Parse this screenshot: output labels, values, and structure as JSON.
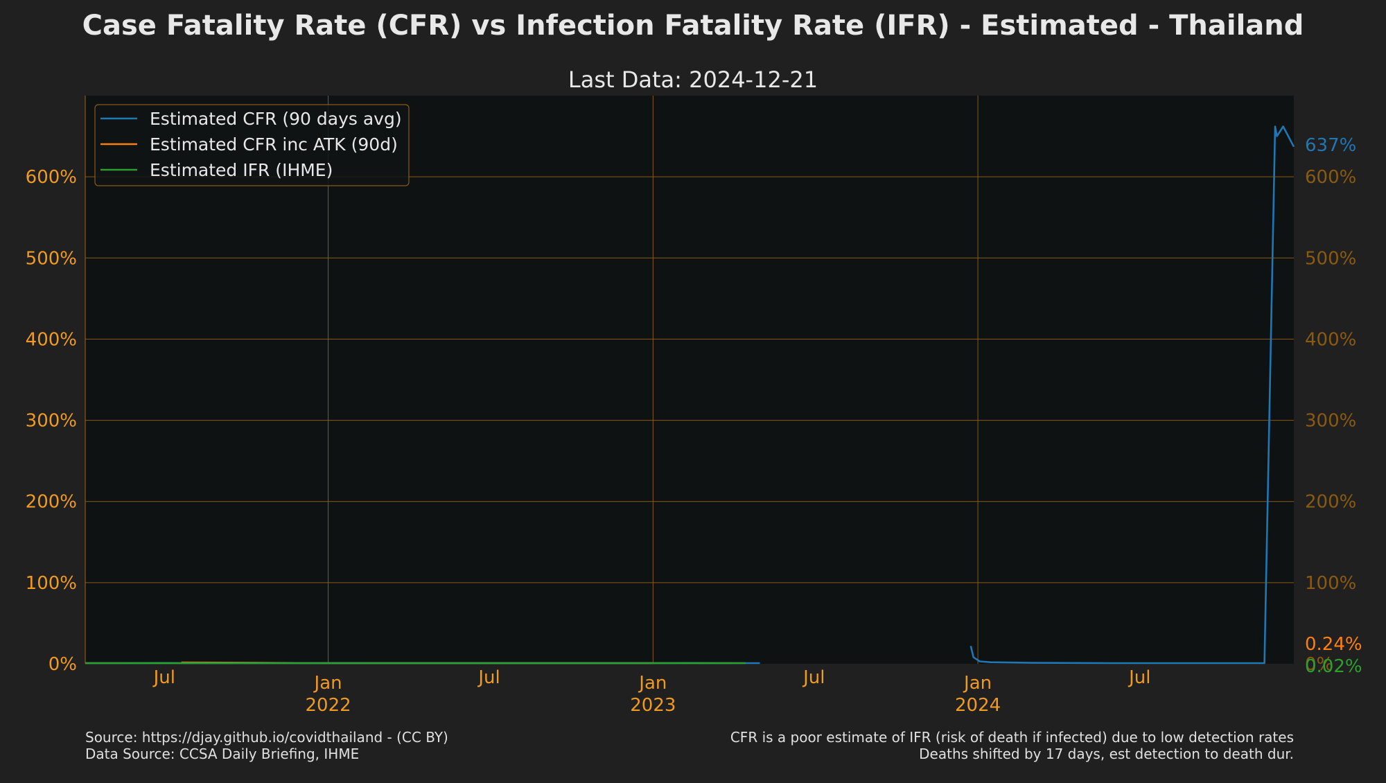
{
  "chart_data": {
    "type": "line",
    "title": "Case Fatality Rate (CFR) vs Infection Fatality Rate (IFR) - Estimated - Thailand",
    "subtitle": "Last Data: 2024-12-21",
    "xlabel": "",
    "ylabel": "",
    "x_range": [
      "2021-04-03",
      "2024-12-21"
    ],
    "ylim": [
      0,
      700
    ],
    "y_ticks": [
      0,
      100,
      200,
      300,
      400,
      500,
      600
    ],
    "y_tick_labels": [
      "0%",
      "100%",
      "200%",
      "300%",
      "400%",
      "500%",
      "600%"
    ],
    "x_ticks": [
      {
        "date": "2021-07-01",
        "label": "Jul",
        "year": ""
      },
      {
        "date": "2022-01-01",
        "label": "Jan",
        "year": "2022"
      },
      {
        "date": "2022-07-01",
        "label": "Jul",
        "year": ""
      },
      {
        "date": "2023-01-01",
        "label": "Jan",
        "year": "2023"
      },
      {
        "date": "2023-07-01",
        "label": "Jul",
        "year": ""
      },
      {
        "date": "2024-01-01",
        "label": "Jan",
        "year": "2024"
      },
      {
        "date": "2024-07-01",
        "label": "Jul",
        "year": ""
      }
    ],
    "grid": true,
    "legend_position": "top-left",
    "series": [
      {
        "name": "Estimated CFR (90 days avg)",
        "color": "#1f77b4",
        "points": [
          [
            "2021-04-03",
            0.3
          ],
          [
            "2021-05-15",
            0.8
          ],
          [
            "2021-07-01",
            1.0
          ],
          [
            "2021-07-20",
            0.9
          ],
          [
            "2022-06-01",
            0.3
          ],
          [
            "2023-01-01",
            0.3
          ],
          [
            "2023-02-15",
            1.0
          ],
          [
            "2023-03-15",
            0.8
          ],
          [
            "2023-04-15",
            0.1
          ],
          [
            "2023-05-01",
            0.1
          ],
          null,
          [
            "2023-12-24",
            22
          ],
          [
            "2023-12-27",
            8
          ],
          [
            "2024-01-03",
            3
          ],
          [
            "2024-01-15",
            2
          ],
          [
            "2024-03-01",
            1.2
          ],
          [
            "2024-06-01",
            0.8
          ],
          [
            "2024-11-01",
            0.5
          ],
          [
            "2024-11-18",
            0.5
          ],
          [
            "2024-11-30",
            662
          ],
          [
            "2024-12-02",
            650
          ],
          [
            "2024-12-09",
            662
          ],
          [
            "2024-12-21",
            637
          ]
        ],
        "last_value_label": "637%"
      },
      {
        "name": "Estimated CFR inc ATK (90d)",
        "color": "#ff7f0e",
        "points": [
          [
            "2021-07-20",
            1.6
          ],
          [
            "2021-10-01",
            1.4
          ],
          [
            "2022-01-01",
            0.8
          ],
          [
            "2022-06-01",
            0.3
          ],
          [
            "2023-01-01",
            0.2
          ]
        ],
        "last_value_label": "0.24%"
      },
      {
        "name": "Estimated IFR (IHME)",
        "color": "#2ca02c",
        "points": [
          [
            "2021-04-03",
            0.2
          ],
          [
            "2021-06-01",
            0.1
          ],
          [
            "2022-01-01",
            0.05
          ],
          [
            "2023-03-31",
            0.02
          ]
        ],
        "last_value_label": "0.02%"
      }
    ]
  },
  "footer": {
    "source_line1": "Source: https://djay.github.io/covidthailand - (CC BY)",
    "source_line2": "Data Source: CCSA Daily Briefing, IHME",
    "note_line1": "CFR is a poor estimate of IFR (risk of death if infected) due to low detection rates",
    "note_line2": "Deaths shifted by 17 days, est detection to death dur."
  },
  "colors": {
    "background": "#202020",
    "plot_background": "#0e1213",
    "grid": "#8a5a14",
    "tick_text": "#f09a20",
    "right_tick_text": "#8a5a10",
    "text": "#e8e8e8"
  }
}
